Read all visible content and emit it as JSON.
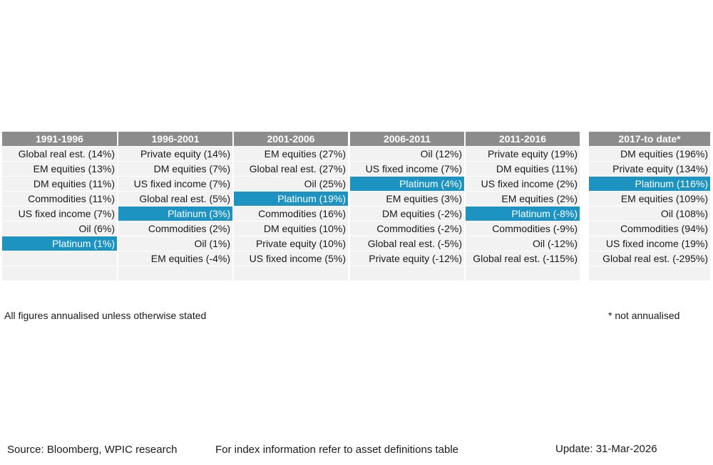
{
  "chart_data": {
    "type": "table",
    "highlight_asset": "Platinum",
    "colors": {
      "header_bg": "#8c8c8c",
      "cell_bg": "#f2f2f2",
      "highlight_bg": "#1d93c2",
      "header_text": "#ffffff"
    },
    "columns": [
      {
        "period": "1991-1996",
        "rows": [
          {
            "label": "Global real est. (14%)",
            "highlight": false
          },
          {
            "label": "EM equities (13%)",
            "highlight": false
          },
          {
            "label": "DM equities (11%)",
            "highlight": false
          },
          {
            "label": "Commodities (11%)",
            "highlight": false
          },
          {
            "label": "US fixed income (7%)",
            "highlight": false
          },
          {
            "label": "Oil (6%)",
            "highlight": false
          },
          {
            "label": "Platinum (1%)",
            "highlight": true
          },
          {
            "label": "",
            "highlight": false
          },
          {
            "label": "",
            "highlight": false
          }
        ]
      },
      {
        "period": "1996-2001",
        "rows": [
          {
            "label": "Private equity (14%)",
            "highlight": false
          },
          {
            "label": "DM equities (7%)",
            "highlight": false
          },
          {
            "label": "US fixed income (7%)",
            "highlight": false
          },
          {
            "label": "Global real est. (5%)",
            "highlight": false
          },
          {
            "label": "Platinum (3%)",
            "highlight": true
          },
          {
            "label": "Commodities (2%)",
            "highlight": false
          },
          {
            "label": "Oil (1%)",
            "highlight": false
          },
          {
            "label": "EM equities (-4%)",
            "highlight": false
          },
          {
            "label": "",
            "highlight": false
          }
        ]
      },
      {
        "period": "2001-2006",
        "rows": [
          {
            "label": "EM equities (27%)",
            "highlight": false
          },
          {
            "label": "Global real est. (27%)",
            "highlight": false
          },
          {
            "label": "Oil (25%)",
            "highlight": false
          },
          {
            "label": "Platinum (19%)",
            "highlight": true
          },
          {
            "label": "Commodities (16%)",
            "highlight": false
          },
          {
            "label": "DM equities (10%)",
            "highlight": false
          },
          {
            "label": "Private equity (10%)",
            "highlight": false
          },
          {
            "label": "US fixed income (5%)",
            "highlight": false
          },
          {
            "label": "",
            "highlight": false
          }
        ]
      },
      {
        "period": "2006-2011",
        "rows": [
          {
            "label": "Oil (12%)",
            "highlight": false
          },
          {
            "label": "US fixed income (7%)",
            "highlight": false
          },
          {
            "label": "Platinum (4%)",
            "highlight": true
          },
          {
            "label": "EM equities (3%)",
            "highlight": false
          },
          {
            "label": "DM equities (-2%)",
            "highlight": false
          },
          {
            "label": "Commodities (-2%)",
            "highlight": false
          },
          {
            "label": "Global real est. (-5%)",
            "highlight": false
          },
          {
            "label": "Private equity (-12%)",
            "highlight": false
          },
          {
            "label": "",
            "highlight": false
          }
        ]
      },
      {
        "period": "2011-2016",
        "rows": [
          {
            "label": "Private equity (19%)",
            "highlight": false
          },
          {
            "label": "DM equities (11%)",
            "highlight": false
          },
          {
            "label": "US fixed income (2%)",
            "highlight": false
          },
          {
            "label": "EM equities (2%)",
            "highlight": false
          },
          {
            "label": "Platinum (-8%)",
            "highlight": true
          },
          {
            "label": "Commodities (-9%)",
            "highlight": false
          },
          {
            "label": "Oil (-12%)",
            "highlight": false
          },
          {
            "label": "Global real est. (-115%)",
            "highlight": false
          },
          {
            "label": "",
            "highlight": false
          }
        ]
      },
      {
        "period": "2017-to date*",
        "rows": [
          {
            "label": "DM equities (196%)",
            "highlight": false
          },
          {
            "label": "Private equity (134%)",
            "highlight": false
          },
          {
            "label": "Platinum (116%)",
            "highlight": true
          },
          {
            "label": "EM equities (109%)",
            "highlight": false
          },
          {
            "label": "Oil (108%)",
            "highlight": false
          },
          {
            "label": "Commodities (94%)",
            "highlight": false
          },
          {
            "label": "US fixed income (19%)",
            "highlight": false
          },
          {
            "label": "Global real est. (-295%)",
            "highlight": false
          },
          {
            "label": "",
            "highlight": false
          }
        ]
      }
    ]
  },
  "notes": {
    "annualised": "All figures annualised unless otherwise stated",
    "not_annualised": "* not annualised"
  },
  "footer": {
    "source": "Source: Bloomberg, WPIC research",
    "index_info": "For index information refer to asset definitions table",
    "update": "Update: 31-Mar-2026"
  }
}
